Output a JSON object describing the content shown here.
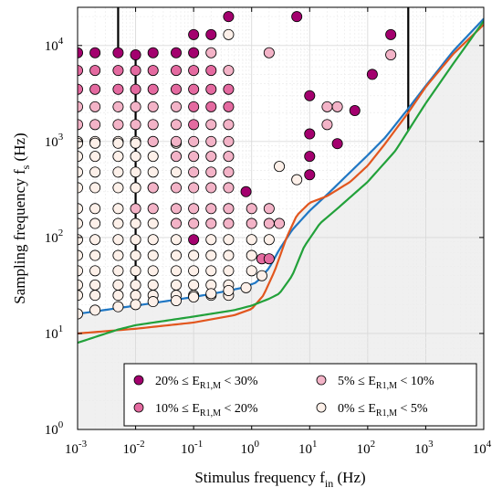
{
  "chart_data": {
    "type": "scatter",
    "x_scale": "log",
    "y_scale": "log",
    "xlim": [
      0.001,
      10000
    ],
    "ylim": [
      1,
      25000
    ],
    "grid": true,
    "xlabel_main": "Stimulus frequency f",
    "xlabel_sub": "in",
    "xlabel_unit": " (Hz)",
    "ylabel_main": "Sampling frequency f",
    "ylabel_sub": "s",
    "ylabel_unit": " (Hz)",
    "x_ticks": [
      {
        "value": 0.001,
        "base": "10",
        "exp": "-3"
      },
      {
        "value": 0.01,
        "base": "10",
        "exp": "-2"
      },
      {
        "value": 0.1,
        "base": "10",
        "exp": "-1"
      },
      {
        "value": 1,
        "base": "10",
        "exp": "0"
      },
      {
        "value": 10,
        "base": "10",
        "exp": "1"
      },
      {
        "value": 100,
        "base": "10",
        "exp": "2"
      },
      {
        "value": 1000,
        "base": "10",
        "exp": "3"
      },
      {
        "value": 10000,
        "base": "10",
        "exp": "4"
      }
    ],
    "y_ticks": [
      {
        "value": 1,
        "base": "10",
        "exp": "0"
      },
      {
        "value": 10,
        "base": "10",
        "exp": "1"
      },
      {
        "value": 100,
        "base": "10",
        "exp": "2"
      },
      {
        "value": 1000,
        "base": "10",
        "exp": "3"
      },
      {
        "value": 10000,
        "base": "10",
        "exp": "4"
      }
    ],
    "vertical_lines": [
      {
        "x": 0.005,
        "y_from": 8000,
        "y_to": 25000
      },
      {
        "x": 0.01,
        "y_from": 21,
        "y_to": 8000
      },
      {
        "x": 500,
        "y_from": 1300,
        "y_to": 25000
      }
    ],
    "shaded_region": {
      "color": "#f0f0f0",
      "description_upper_curve": "max of curves"
    },
    "curves": [
      {
        "color": "#1f77c4",
        "points": [
          [
            0.001,
            16
          ],
          [
            0.003,
            17.6
          ],
          [
            0.01,
            19.5
          ],
          [
            0.03,
            21.5
          ],
          [
            0.1,
            24
          ],
          [
            0.3,
            27
          ],
          [
            0.7,
            30
          ],
          [
            1.2,
            34
          ],
          [
            2,
            48
          ],
          [
            3,
            75
          ],
          [
            5,
            120
          ],
          [
            10,
            190
          ],
          [
            20,
            280
          ],
          [
            50,
            480
          ],
          [
            100,
            720
          ],
          [
            200,
            1100
          ],
          [
            500,
            2200
          ],
          [
            1000,
            3800
          ],
          [
            3000,
            8800
          ],
          [
            10000,
            19000
          ]
        ]
      },
      {
        "color": "#e2561e",
        "points": [
          [
            0.001,
            10
          ],
          [
            0.01,
            11.2
          ],
          [
            0.1,
            13
          ],
          [
            0.5,
            15.5
          ],
          [
            1,
            18
          ],
          [
            1.6,
            25
          ],
          [
            2.5,
            45
          ],
          [
            4,
            100
          ],
          [
            6,
            170
          ],
          [
            10,
            230
          ],
          [
            20,
            270
          ],
          [
            50,
            380
          ],
          [
            100,
            560
          ],
          [
            200,
            950
          ],
          [
            500,
            2000
          ],
          [
            1000,
            3700
          ],
          [
            3000,
            8200
          ],
          [
            10000,
            16500
          ]
        ]
      },
      {
        "color": "#22a13a",
        "points": [
          [
            0.001,
            8
          ],
          [
            0.005,
            11
          ],
          [
            0.01,
            12.2
          ],
          [
            0.1,
            15
          ],
          [
            0.5,
            17.5
          ],
          [
            1,
            19.5
          ],
          [
            2,
            23
          ],
          [
            3,
            26
          ],
          [
            5,
            40
          ],
          [
            8,
            80
          ],
          [
            15,
            140
          ],
          [
            30,
            200
          ],
          [
            100,
            380
          ],
          [
            300,
            800
          ],
          [
            1000,
            2500
          ],
          [
            3000,
            6500
          ],
          [
            10000,
            18000
          ]
        ]
      }
    ],
    "series": [
      {
        "name_main": "20% ≤ E",
        "name_sub": "R1,M",
        "name_tail": " < 30%",
        "color": "#a3006e",
        "points": [
          [
            0.001,
            8400
          ],
          [
            0.002,
            8400
          ],
          [
            0.005,
            8400
          ],
          [
            0.01,
            8000
          ],
          [
            0.02,
            8400
          ],
          [
            0.05,
            8400
          ],
          [
            0.1,
            8400
          ],
          [
            0.1,
            13000
          ],
          [
            0.2,
            13000
          ],
          [
            0.4,
            20000
          ],
          [
            0.8,
            300
          ],
          [
            0.1,
            95
          ],
          [
            6,
            20000
          ],
          [
            10,
            3000
          ],
          [
            10,
            1200
          ],
          [
            10,
            450
          ],
          [
            10,
            700
          ],
          [
            30,
            950
          ],
          [
            60,
            2100
          ],
          [
            120,
            5000
          ],
          [
            250,
            13000
          ]
        ]
      },
      {
        "name_main": "10% ≤ E",
        "name_sub": "R1,M",
        "name_tail": " < 20%",
        "color": "#e46aa0",
        "points": [
          [
            0.001,
            5500
          ],
          [
            0.002,
            5500
          ],
          [
            0.005,
            5500
          ],
          [
            0.01,
            5500
          ],
          [
            0.02,
            5500
          ],
          [
            0.05,
            5500
          ],
          [
            0.1,
            5500
          ],
          [
            0.2,
            5500
          ],
          [
            0.1,
            2300
          ],
          [
            0.2,
            2300
          ],
          [
            0.4,
            2300
          ],
          [
            0.1,
            1500
          ],
          [
            0.01,
            3500
          ],
          [
            0.02,
            3500
          ],
          [
            0.05,
            3500
          ],
          [
            0.1,
            3500
          ],
          [
            0.2,
            3500
          ],
          [
            0.4,
            3500
          ],
          [
            0.001,
            3500
          ],
          [
            0.002,
            3500
          ],
          [
            0.005,
            3500
          ],
          [
            1.5,
            60
          ],
          [
            2,
            60
          ]
        ]
      },
      {
        "name_main": "5% ≤ E",
        "name_sub": "R1,M",
        "name_tail": " < 10%",
        "color": "#f3b3c7",
        "points": [
          [
            0.001,
            2300
          ],
          [
            0.002,
            2300
          ],
          [
            0.005,
            2300
          ],
          [
            0.01,
            2300
          ],
          [
            0.02,
            2300
          ],
          [
            0.05,
            2300
          ],
          [
            0.001,
            1500
          ],
          [
            0.002,
            1500
          ],
          [
            0.005,
            1500
          ],
          [
            0.01,
            1500
          ],
          [
            0.02,
            1500
          ],
          [
            0.05,
            1500
          ],
          [
            0.2,
            1500
          ],
          [
            0.4,
            1500
          ],
          [
            0.4,
            5500
          ],
          [
            0.2,
            8400
          ],
          [
            2,
            8400
          ],
          [
            20,
            2300
          ],
          [
            20,
            1500
          ],
          [
            30,
            2300
          ],
          [
            250,
            8000
          ],
          [
            0.1,
            1000
          ],
          [
            0.2,
            1000
          ],
          [
            0.4,
            1000
          ],
          [
            0.05,
            1000
          ],
          [
            0.02,
            1000
          ],
          [
            0.05,
            700
          ],
          [
            0.1,
            700
          ],
          [
            0.2,
            700
          ],
          [
            0.4,
            700
          ],
          [
            0.1,
            480
          ],
          [
            0.2,
            480
          ],
          [
            0.4,
            480
          ],
          [
            0.02,
            330
          ],
          [
            0.05,
            330
          ],
          [
            0.1,
            330
          ],
          [
            0.2,
            330
          ],
          [
            0.4,
            330
          ],
          [
            0.02,
            200
          ],
          [
            0.05,
            200
          ],
          [
            0.1,
            200
          ],
          [
            0.2,
            200
          ],
          [
            0.4,
            200
          ],
          [
            1,
            200
          ],
          [
            2,
            200
          ],
          [
            0.05,
            140
          ],
          [
            0.1,
            140
          ],
          [
            0.2,
            140
          ],
          [
            0.4,
            140
          ],
          [
            1,
            140
          ],
          [
            2,
            140
          ],
          [
            3,
            140
          ],
          [
            0.01,
            200
          ]
        ]
      },
      {
        "name_main": "0% ≤ E",
        "name_sub": "R1,M",
        "name_tail": " < 5%",
        "color": "#fdf0e9",
        "points": [
          [
            0.001,
            1000
          ],
          [
            0.002,
            1000
          ],
          [
            0.005,
            1000
          ],
          [
            0.01,
            1000
          ],
          [
            0.02,
            1000
          ],
          [
            0.4,
            13000
          ],
          [
            0.001,
            700
          ],
          [
            0.002,
            700
          ],
          [
            0.005,
            700
          ],
          [
            0.01,
            700
          ],
          [
            0.02,
            700
          ],
          [
            0.001,
            480
          ],
          [
            0.002,
            480
          ],
          [
            0.005,
            480
          ],
          [
            0.01,
            480
          ],
          [
            0.02,
            480
          ],
          [
            0.05,
            480
          ],
          [
            0.001,
            330
          ],
          [
            0.002,
            330
          ],
          [
            0.005,
            330
          ],
          [
            0.01,
            330
          ],
          [
            0.001,
            200
          ],
          [
            0.002,
            200
          ],
          [
            0.005,
            200
          ],
          [
            0.001,
            140
          ],
          [
            0.002,
            140
          ],
          [
            0.005,
            140
          ],
          [
            0.01,
            140
          ],
          [
            0.02,
            140
          ],
          [
            0.001,
            95
          ],
          [
            0.002,
            95
          ],
          [
            0.005,
            95
          ],
          [
            0.01,
            95
          ],
          [
            0.02,
            95
          ],
          [
            0.05,
            95
          ],
          [
            0.2,
            95
          ],
          [
            0.4,
            95
          ],
          [
            1,
            95
          ],
          [
            2,
            95
          ],
          [
            0.001,
            65
          ],
          [
            0.002,
            65
          ],
          [
            0.005,
            65
          ],
          [
            0.01,
            65
          ],
          [
            0.02,
            65
          ],
          [
            0.05,
            65
          ],
          [
            0.1,
            65
          ],
          [
            0.2,
            65
          ],
          [
            0.4,
            65
          ],
          [
            1,
            65
          ],
          [
            0.001,
            45
          ],
          [
            0.002,
            45
          ],
          [
            0.005,
            45
          ],
          [
            0.01,
            45
          ],
          [
            0.02,
            45
          ],
          [
            0.05,
            45
          ],
          [
            0.1,
            45
          ],
          [
            0.2,
            45
          ],
          [
            0.4,
            45
          ],
          [
            1,
            45
          ],
          [
            0.001,
            32
          ],
          [
            0.002,
            32
          ],
          [
            0.005,
            32
          ],
          [
            0.01,
            32
          ],
          [
            0.02,
            32
          ],
          [
            0.05,
            32
          ],
          [
            0.1,
            32
          ],
          [
            0.2,
            32
          ],
          [
            0.4,
            32
          ],
          [
            0.001,
            25
          ],
          [
            0.002,
            25
          ],
          [
            0.005,
            25
          ],
          [
            0.01,
            25
          ],
          [
            0.02,
            25
          ],
          [
            0.05,
            25
          ],
          [
            0.1,
            25
          ],
          [
            0.2,
            25
          ],
          [
            0.4,
            25
          ],
          [
            0.001,
            16
          ],
          [
            0.002,
            17.5
          ],
          [
            0.005,
            19
          ],
          [
            0.01,
            20
          ],
          [
            0.02,
            21.5
          ],
          [
            0.05,
            22
          ],
          [
            0.1,
            24
          ],
          [
            0.2,
            26
          ],
          [
            0.4,
            28
          ],
          [
            0.8,
            30
          ],
          [
            1.5,
            40
          ],
          [
            3,
            550
          ],
          [
            6,
            400
          ],
          [
            0.01,
            330
          ],
          [
            0.02,
            330
          ],
          [
            0.05,
            960
          ],
          [
            0.01,
            960
          ],
          [
            0.001,
            960
          ],
          [
            0.002,
            960
          ],
          [
            0.005,
            960
          ]
        ]
      }
    ],
    "legend": {
      "placement": "lower-right"
    }
  }
}
